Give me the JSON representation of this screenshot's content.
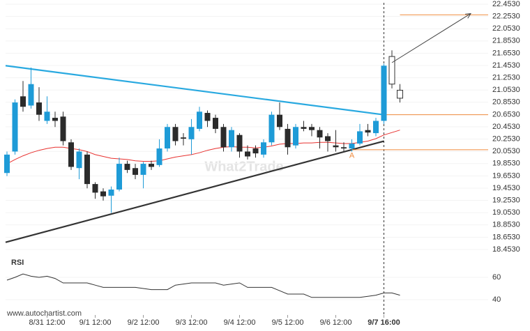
{
  "chart_data": {
    "type": "candlestick",
    "categories": [
      null,
      null,
      null,
      null,
      null,
      "8/31 12:00",
      null,
      null,
      null,
      null,
      null,
      "9/1 12:00",
      null,
      null,
      null,
      null,
      null,
      "9/2 12:00",
      null,
      null,
      null,
      null,
      null,
      "9/3 12:00",
      null,
      null,
      null,
      null,
      null,
      "9/4 12:00",
      null,
      null,
      null,
      null,
      null,
      "9/5 12:00",
      null,
      null,
      null,
      null,
      null,
      "9/6 12:00",
      null,
      null,
      null,
      null,
      null,
      "9/7 16:00",
      null,
      null
    ],
    "open": [
      19.7,
      20.05,
      20.95,
      20.8,
      20.85,
      20.55,
      20.6,
      20.62,
      20.2,
      19.78,
      20.0,
      19.52,
      19.4,
      19.33,
      19.43,
      19.85,
      19.78,
      19.67,
      19.85,
      19.83,
      20.1,
      20.45,
      20.28,
      20.25,
      20.42,
      20.68,
      20.6,
      20.45,
      20.12,
      20.32,
      20.05,
      20.1,
      20.0,
      20.2,
      20.65,
      20.42,
      20.15,
      20.45,
      20.45,
      20.4,
      20.3,
      20.15,
      20.12,
      20.1,
      20.18,
      20.4,
      20.35,
      20.55,
      21.15,
      21.05
    ],
    "high": [
      20.05,
      20.9,
      21.2,
      21.42,
      21.1,
      20.95,
      20.7,
      20.7,
      20.25,
      20.1,
      20.05,
      19.55,
      19.45,
      19.48,
      19.95,
      19.9,
      19.85,
      19.88,
      19.9,
      20.25,
      20.5,
      20.5,
      20.35,
      20.58,
      20.78,
      20.72,
      20.65,
      20.5,
      20.45,
      20.35,
      20.15,
      20.15,
      20.25,
      20.7,
      20.85,
      20.5,
      20.5,
      20.55,
      20.5,
      20.45,
      20.35,
      20.4,
      20.2,
      20.25,
      20.5,
      20.5,
      20.6,
      21.48,
      21.7,
      21.15
    ],
    "low": [
      19.65,
      20.0,
      20.7,
      20.75,
      20.55,
      20.5,
      20.45,
      20.15,
      19.75,
      19.6,
      19.45,
      19.28,
      19.25,
      19.05,
      19.4,
      19.7,
      19.6,
      19.45,
      19.75,
      19.8,
      20.05,
      20.15,
      20.15,
      20.0,
      20.38,
      20.45,
      20.35,
      20.05,
      20.05,
      19.95,
      19.92,
      19.95,
      19.95,
      20.15,
      20.4,
      20.0,
      20.1,
      20.38,
      20.3,
      20.1,
      20.05,
      20.05,
      20.05,
      20.05,
      20.15,
      20.3,
      20.3,
      20.5,
      21.08,
      20.85
    ],
    "close": [
      20.0,
      20.85,
      20.78,
      21.15,
      20.65,
      20.7,
      20.55,
      20.22,
      19.8,
      20.05,
      19.52,
      19.38,
      19.32,
      19.43,
      19.85,
      19.75,
      19.67,
      19.85,
      19.8,
      20.1,
      20.45,
      20.22,
      20.26,
      20.45,
      20.7,
      20.55,
      20.42,
      20.12,
      20.4,
      20.05,
      19.97,
      20.02,
      20.2,
      20.65,
      20.45,
      20.12,
      20.45,
      20.42,
      20.4,
      20.28,
      20.22,
      20.12,
      20.1,
      20.18,
      20.38,
      20.36,
      20.55,
      21.45,
      21.6,
      20.92
    ],
    "up_color": "#1e9bd7",
    "down_color": "#2b2b2b",
    "hollow_from": 48,
    "ma": {
      "color": "#e8312f",
      "values": [
        19.85,
        19.92,
        19.98,
        20.03,
        20.07,
        20.1,
        20.12,
        20.12,
        20.1,
        20.08,
        20.05,
        20.0,
        19.97,
        19.94,
        19.93,
        19.92,
        19.9,
        19.89,
        19.89,
        19.9,
        19.93,
        19.96,
        19.98,
        20.0,
        20.03,
        20.07,
        20.1,
        20.12,
        20.13,
        20.12,
        20.12,
        20.11,
        20.12,
        20.14,
        20.17,
        20.18,
        20.18,
        20.19,
        20.19,
        20.2,
        20.2,
        20.19,
        20.18,
        20.18,
        20.2,
        20.22,
        20.26,
        20.32,
        20.36,
        20.4
      ]
    },
    "trend_lines": [
      {
        "color": "#29a9e0",
        "values": [
          21.45,
          20.65
        ]
      },
      {
        "color": "#333333",
        "values": [
          18.57,
          20.22
        ]
      }
    ],
    "levels": {
      "color": "#f08a3c",
      "values": [
        22.28,
        20.65,
        20.08
      ]
    },
    "forecast_arrow": [
      21.5,
      22.3
    ],
    "annotation": "A",
    "watermark": "What2Trade",
    "source": "www.autochartist.com",
    "ylim": [
      18.453,
      22.453
    ],
    "yticks": [
      {
        "value": 18.453,
        "label": "18.4530"
      },
      {
        "value": 18.653,
        "label": "18.6530"
      },
      {
        "value": 18.853,
        "label": "18.8530"
      },
      {
        "value": 19.053,
        "label": "19.0530"
      },
      {
        "value": 19.253,
        "label": "19.2530"
      },
      {
        "value": 19.453,
        "label": "19.4530"
      },
      {
        "value": 19.653,
        "label": "19.6530"
      },
      {
        "value": 19.853,
        "label": "19.8530"
      },
      {
        "value": 20.053,
        "label": "20.0530"
      },
      {
        "value": 20.253,
        "label": "20.2530"
      },
      {
        "value": 20.453,
        "label": "20.4530"
      },
      {
        "value": 20.653,
        "label": "20.6530"
      },
      {
        "value": 20.853,
        "label": "20.8530"
      },
      {
        "value": 21.053,
        "label": "21.0530"
      },
      {
        "value": 21.253,
        "label": "21.2530"
      },
      {
        "value": 21.453,
        "label": "21.4530"
      },
      {
        "value": 21.653,
        "label": "21.6530"
      },
      {
        "value": 21.853,
        "label": "21.8530"
      },
      {
        "value": 22.053,
        "label": "22.0530"
      },
      {
        "value": 22.253,
        "label": "22.2530"
      },
      {
        "value": 22.453,
        "label": "22.4530"
      }
    ],
    "rsi": {
      "title": "RSI",
      "color": "#333333",
      "ylim": [
        30,
        70
      ],
      "yticks": [
        40,
        60
      ],
      "values": [
        57.5,
        60,
        63,
        61,
        60,
        61,
        59,
        55,
        55,
        55,
        55,
        53,
        51,
        51,
        51,
        51,
        51,
        50,
        49,
        49,
        49,
        53,
        54,
        55,
        55,
        55,
        55,
        53,
        54,
        55,
        51,
        51,
        51,
        51,
        48,
        45,
        45,
        45,
        42,
        42,
        42,
        42,
        42,
        42,
        42,
        43,
        44,
        46,
        46,
        44
      ]
    }
  }
}
